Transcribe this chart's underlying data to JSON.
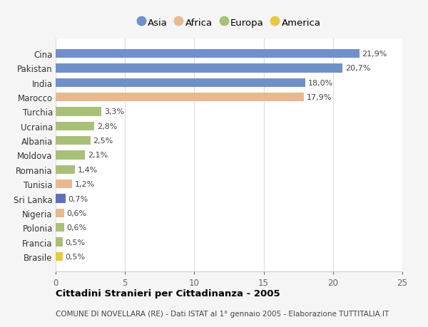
{
  "countries": [
    "Cina",
    "Pakistan",
    "India",
    "Marocco",
    "Turchia",
    "Ucraina",
    "Albania",
    "Moldova",
    "Romania",
    "Tunisia",
    "Sri Lanka",
    "Nigeria",
    "Polonia",
    "Francia",
    "Brasile"
  ],
  "values": [
    21.9,
    20.7,
    18.0,
    17.9,
    3.3,
    2.8,
    2.5,
    2.1,
    1.4,
    1.2,
    0.7,
    0.6,
    0.6,
    0.5,
    0.5
  ],
  "labels": [
    "21,9%",
    "20,7%",
    "18,0%",
    "17,9%",
    "3,3%",
    "2,8%",
    "2,5%",
    "2,1%",
    "1,4%",
    "1,2%",
    "0,7%",
    "0,6%",
    "0,6%",
    "0,5%",
    "0,5%"
  ],
  "show_label_inside": [
    false,
    false,
    false,
    false,
    true,
    true,
    true,
    true,
    true,
    true,
    true,
    true,
    true,
    true,
    true
  ],
  "colors": [
    "#7090c8",
    "#7090c8",
    "#7090c8",
    "#e8b890",
    "#a8c078",
    "#a8c078",
    "#a8c078",
    "#a8c078",
    "#a8c078",
    "#e8b890",
    "#6070b8",
    "#e8b890",
    "#a8c078",
    "#a8c078",
    "#e8c840"
  ],
  "continent_colors": {
    "Asia": "#7090c8",
    "Africa": "#e8b890",
    "Europa": "#a8c078",
    "America": "#e8c840"
  },
  "legend_labels": [
    "Asia",
    "Africa",
    "Europa",
    "America"
  ],
  "xlim": [
    0,
    25
  ],
  "xticks": [
    0,
    5,
    10,
    15,
    20,
    25
  ],
  "title": "Cittadini Stranieri per Cittadinanza - 2005",
  "subtitle": "COMUNE DI NOVELLARA (RE) - Dati ISTAT al 1° gennaio 2005 - Elaborazione TUTTITALIA.IT",
  "bg_color": "#f5f5f5",
  "bar_bg_color": "#ffffff"
}
